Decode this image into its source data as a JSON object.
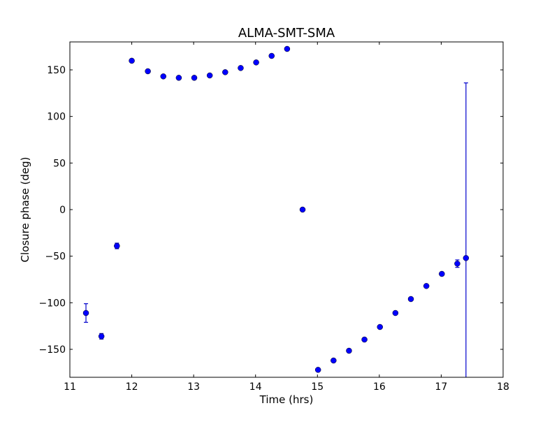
{
  "chart_data": {
    "type": "scatter",
    "title": "ALMA-SMT-SMA",
    "xlabel": "Time (hrs)",
    "ylabel": "Closure phase (deg)",
    "xlim": [
      11,
      18
    ],
    "ylim": [
      -180,
      180
    ],
    "xticks": [
      11,
      12,
      13,
      14,
      15,
      16,
      17,
      18
    ],
    "yticks": [
      -150,
      -100,
      -50,
      0,
      50,
      100,
      150
    ],
    "ytick_labels": [
      "−150",
      "−100",
      "−50",
      "0",
      "50",
      "100",
      "150"
    ],
    "grid": false,
    "marker_color": "#0000ff",
    "errorbar_color": "#0000cc",
    "series": [
      {
        "name": "ALMA-SMT-SMA",
        "x": [
          11.26,
          11.51,
          11.76,
          12.0,
          12.26,
          12.51,
          12.76,
          13.01,
          13.26,
          13.51,
          13.76,
          14.01,
          14.26,
          14.51,
          14.76,
          15.01,
          15.26,
          15.51,
          15.76,
          16.01,
          16.26,
          16.51,
          16.76,
          17.01,
          17.26,
          17.4
        ],
        "y": [
          -111,
          -136,
          -39,
          159.8,
          148.5,
          143,
          141.5,
          141.5,
          144,
          147.5,
          152,
          158,
          165,
          172.5,
          0,
          -172,
          -162,
          -151.5,
          -139.5,
          -126,
          -111,
          -96,
          -82,
          -69,
          -58,
          -52
        ],
        "err": [
          10,
          3,
          3,
          1.5,
          1,
          1,
          1,
          1,
          1,
          1,
          1,
          1,
          1,
          1,
          1,
          1,
          1,
          1,
          1,
          1,
          1,
          1,
          1,
          1.5,
          4,
          188
        ]
      }
    ]
  }
}
